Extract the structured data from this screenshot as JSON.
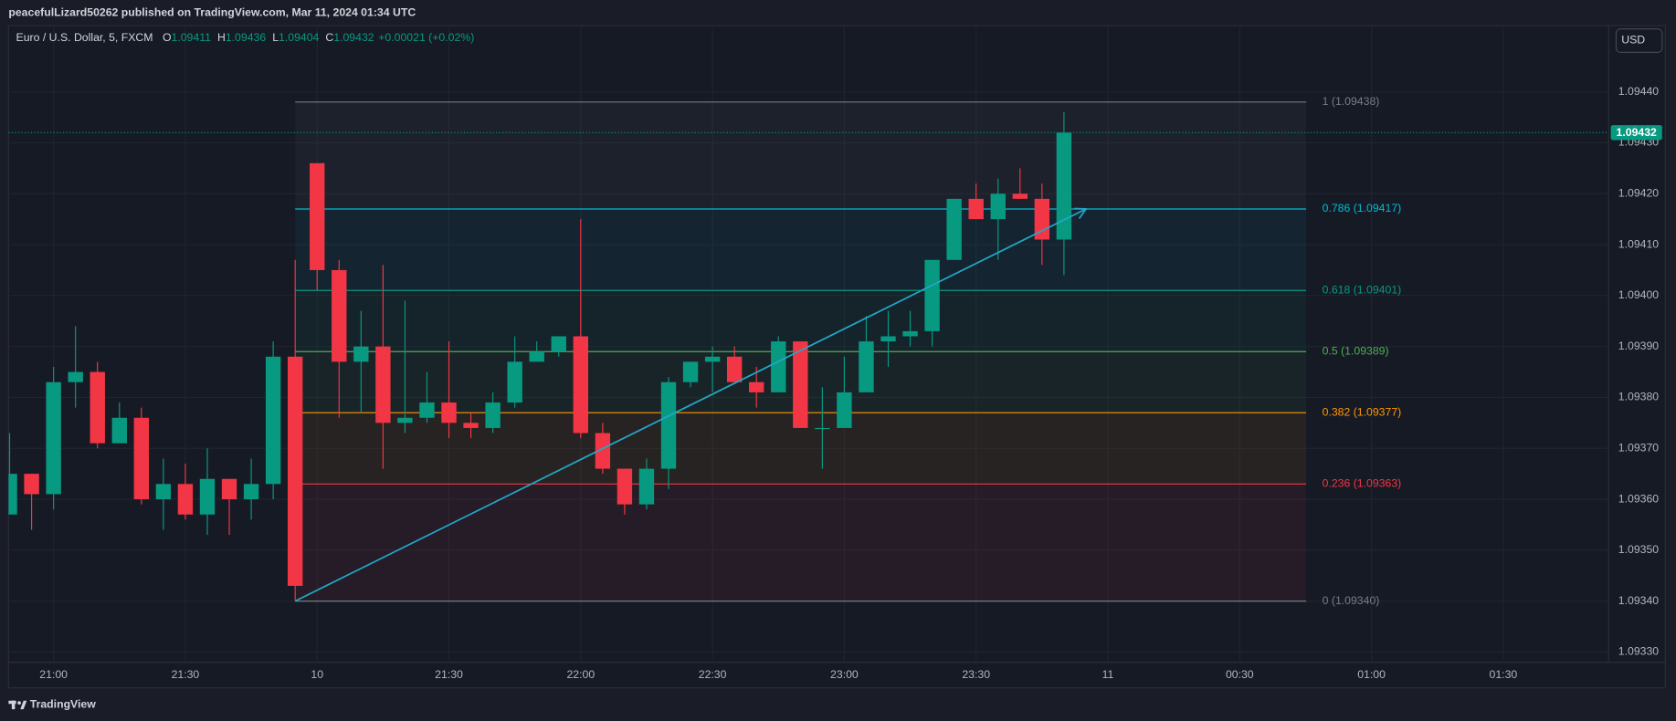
{
  "header": {
    "title": "peacefulLizard50262 published on TradingView.com, Mar 11, 2024 01:34 UTC"
  },
  "chart_data": {
    "type": "candlestick",
    "legend": {
      "symbol": "Euro / U.S. Dollar, 5, FXCM",
      "items": [
        {
          "key": "O",
          "value": 1.09411
        },
        {
          "key": "H",
          "value": 1.09436
        },
        {
          "key": "L",
          "value": 1.09404
        },
        {
          "key": "C",
          "value": 1.09432
        }
      ],
      "change": "+0.00021 (+0.02%)"
    },
    "currency": "USD",
    "categories": [
      null,
      null,
      "21:00",
      null,
      null,
      null,
      null,
      null,
      "21:30",
      null,
      null,
      null,
      null,
      null,
      "10",
      null,
      null,
      null,
      null,
      null,
      "21:30",
      null,
      null,
      null,
      null,
      null,
      "22:00",
      null,
      null,
      null,
      null,
      null,
      "22:30",
      null,
      null,
      null,
      null,
      null,
      "23:00",
      null,
      null,
      null,
      null,
      null,
      "23:30",
      null,
      null,
      null,
      null,
      null,
      "11",
      null,
      null,
      null,
      null,
      null,
      "00:30",
      null,
      null,
      null,
      null,
      null,
      "01:00",
      null,
      null,
      null,
      null,
      null,
      "01:30",
      null,
      null,
      null,
      null
    ],
    "open": [
      1.09357,
      1.09365,
      1.09361,
      1.09383,
      1.09385,
      1.09371,
      1.09376,
      1.0936,
      1.09363,
      1.09357,
      1.09364,
      1.0936,
      1.09363,
      1.09388,
      1.09426,
      1.09405,
      1.09387,
      1.0939,
      1.09375,
      1.09376,
      1.09379,
      1.09375,
      1.09374,
      1.09379,
      1.09387,
      1.09389,
      1.09392,
      1.09373,
      1.09366,
      1.09359,
      1.09366,
      1.09383,
      1.09387,
      1.09388,
      1.09383,
      1.09381,
      1.09391,
      1.09374,
      1.09374,
      1.09381,
      1.09391,
      1.09392,
      1.09393,
      1.09407,
      1.09419,
      1.09415,
      1.0942,
      1.09419,
      1.09411,
      null,
      null,
      null,
      null,
      null,
      null,
      null,
      null,
      null,
      null,
      null,
      null,
      null,
      null,
      null,
      null,
      null,
      null,
      null,
      null,
      null,
      null,
      null,
      null
    ],
    "high": [
      1.09373,
      1.09365,
      1.09386,
      1.09394,
      1.09387,
      1.09379,
      1.09378,
      1.09368,
      1.09367,
      1.0937,
      1.09364,
      1.09368,
      1.09391,
      1.09407,
      1.09426,
      1.09407,
      1.09397,
      1.09406,
      1.09399,
      1.09385,
      1.09391,
      1.09377,
      1.09381,
      1.09392,
      1.09391,
      1.09392,
      1.09415,
      1.09375,
      1.09366,
      1.09368,
      1.09384,
      1.09387,
      1.0939,
      1.0939,
      1.09386,
      1.09392,
      1.09391,
      1.09382,
      1.09388,
      1.09396,
      1.09397,
      1.09397,
      1.09407,
      1.09419,
      1.09422,
      1.09423,
      1.09425,
      1.09422,
      1.09436,
      null,
      null,
      null,
      null,
      null,
      null,
      null,
      null,
      null,
      null,
      null,
      null,
      null,
      null,
      null,
      null,
      null,
      null,
      null,
      null,
      null,
      null,
      null,
      null
    ],
    "low": [
      1.09357,
      1.09354,
      1.09358,
      1.09378,
      1.0937,
      1.09371,
      1.09359,
      1.09354,
      1.09356,
      1.09353,
      1.09353,
      1.09356,
      1.0936,
      1.0934,
      1.09401,
      1.09376,
      1.09377,
      1.09366,
      1.09373,
      1.09375,
      1.09372,
      1.09372,
      1.09373,
      1.09378,
      1.09387,
      1.09388,
      1.09372,
      1.09365,
      1.09357,
      1.09358,
      1.09362,
      1.09382,
      1.09381,
      1.09383,
      1.09378,
      1.09381,
      1.09374,
      1.09366,
      1.09374,
      1.09381,
      1.09386,
      1.0939,
      1.0939,
      1.09407,
      1.09415,
      1.09407,
      1.09419,
      1.09406,
      1.09404,
      null,
      null,
      null,
      null,
      null,
      null,
      null,
      null,
      null,
      null,
      null,
      null,
      null,
      null,
      null,
      null,
      null,
      null,
      null,
      null,
      null,
      null,
      null,
      null
    ],
    "close": [
      1.09365,
      1.09361,
      1.09383,
      1.09385,
      1.09371,
      1.09376,
      1.0936,
      1.09363,
      1.09357,
      1.09364,
      1.0936,
      1.09363,
      1.09388,
      1.09343,
      1.09405,
      1.09387,
      1.0939,
      1.09375,
      1.09376,
      1.09379,
      1.09375,
      1.09374,
      1.09379,
      1.09387,
      1.09389,
      1.09392,
      1.09373,
      1.09366,
      1.09359,
      1.09366,
      1.09383,
      1.09387,
      1.09388,
      1.09383,
      1.09381,
      1.09391,
      1.09374,
      1.09374,
      1.09381,
      1.09391,
      1.09392,
      1.09393,
      1.09407,
      1.09419,
      1.09415,
      1.0942,
      1.09419,
      1.09411,
      1.09432,
      null,
      null,
      null,
      null,
      null,
      null,
      null,
      null,
      null,
      null,
      null,
      null,
      null,
      null,
      null,
      null,
      null,
      null,
      null,
      null,
      null,
      null,
      null,
      null
    ],
    "up_color": "#089981",
    "down_color": "#f23645",
    "ylim": [
      1.09328,
      1.09453
    ],
    "yticks": [
      {
        "value": 1.0944,
        "label": "1.09440"
      },
      {
        "value": 1.0943,
        "label": "1.09430"
      },
      {
        "value": 1.0942,
        "label": "1.09420"
      },
      {
        "value": 1.0941,
        "label": "1.09410"
      },
      {
        "value": 1.094,
        "label": "1.09400"
      },
      {
        "value": 1.0939,
        "label": "1.09390"
      },
      {
        "value": 1.0938,
        "label": "1.09380"
      },
      {
        "value": 1.0937,
        "label": "1.09370"
      },
      {
        "value": 1.0936,
        "label": "1.09360"
      },
      {
        "value": 1.0935,
        "label": "1.09350"
      },
      {
        "value": 1.0934,
        "label": "1.09340"
      },
      {
        "value": 1.0933,
        "label": "1.09330"
      }
    ],
    "grid": true,
    "last_price": 1.09432,
    "fib_levels": [
      {
        "value": 1.09438,
        "label": "1 (1.09438)",
        "color": "#787b86"
      },
      {
        "value": 1.09417,
        "label": "0.786 (1.09417)",
        "color": "#00bcd4"
      },
      {
        "value": 1.09401,
        "label": "0.618 (1.09401)",
        "color": "#089981"
      },
      {
        "value": 1.09389,
        "label": "0.5 (1.09389)",
        "color": "#4caf50"
      },
      {
        "value": 1.09377,
        "label": "0.382 (1.09377)",
        "color": "#ff9800"
      },
      {
        "value": 1.09363,
        "label": "0.236 (1.09363)",
        "color": "#f23645"
      },
      {
        "value": 1.0934,
        "label": "0 (1.09340)",
        "color": "#787b86"
      }
    ]
  },
  "footer": {
    "brand": "TradingView"
  }
}
